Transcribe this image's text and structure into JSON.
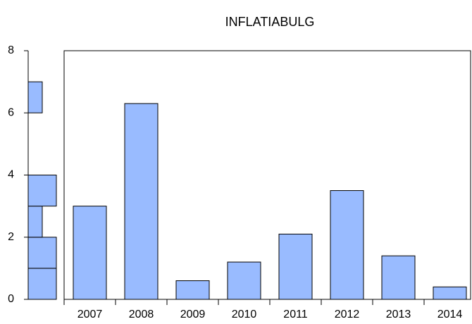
{
  "chart_data": [
    {
      "type": "bar",
      "title": "INFLATIABULG",
      "categories": [
        "2007",
        "2008",
        "2009",
        "2010",
        "2011",
        "2012",
        "2013",
        "2014"
      ],
      "values": [
        3.0,
        6.3,
        0.6,
        1.2,
        2.1,
        3.5,
        1.4,
        0.4
      ],
      "color": "#99bbff",
      "ylim": [
        0,
        8
      ],
      "yticks": [
        0,
        2,
        4,
        6,
        8
      ]
    },
    {
      "type": "histogram",
      "orientation": "horizontal",
      "bins": [
        0,
        1,
        2,
        3,
        4,
        5,
        6,
        7
      ],
      "counts": [
        2,
        2,
        1,
        2,
        0,
        0,
        1
      ],
      "color": "#99bbff"
    }
  ]
}
